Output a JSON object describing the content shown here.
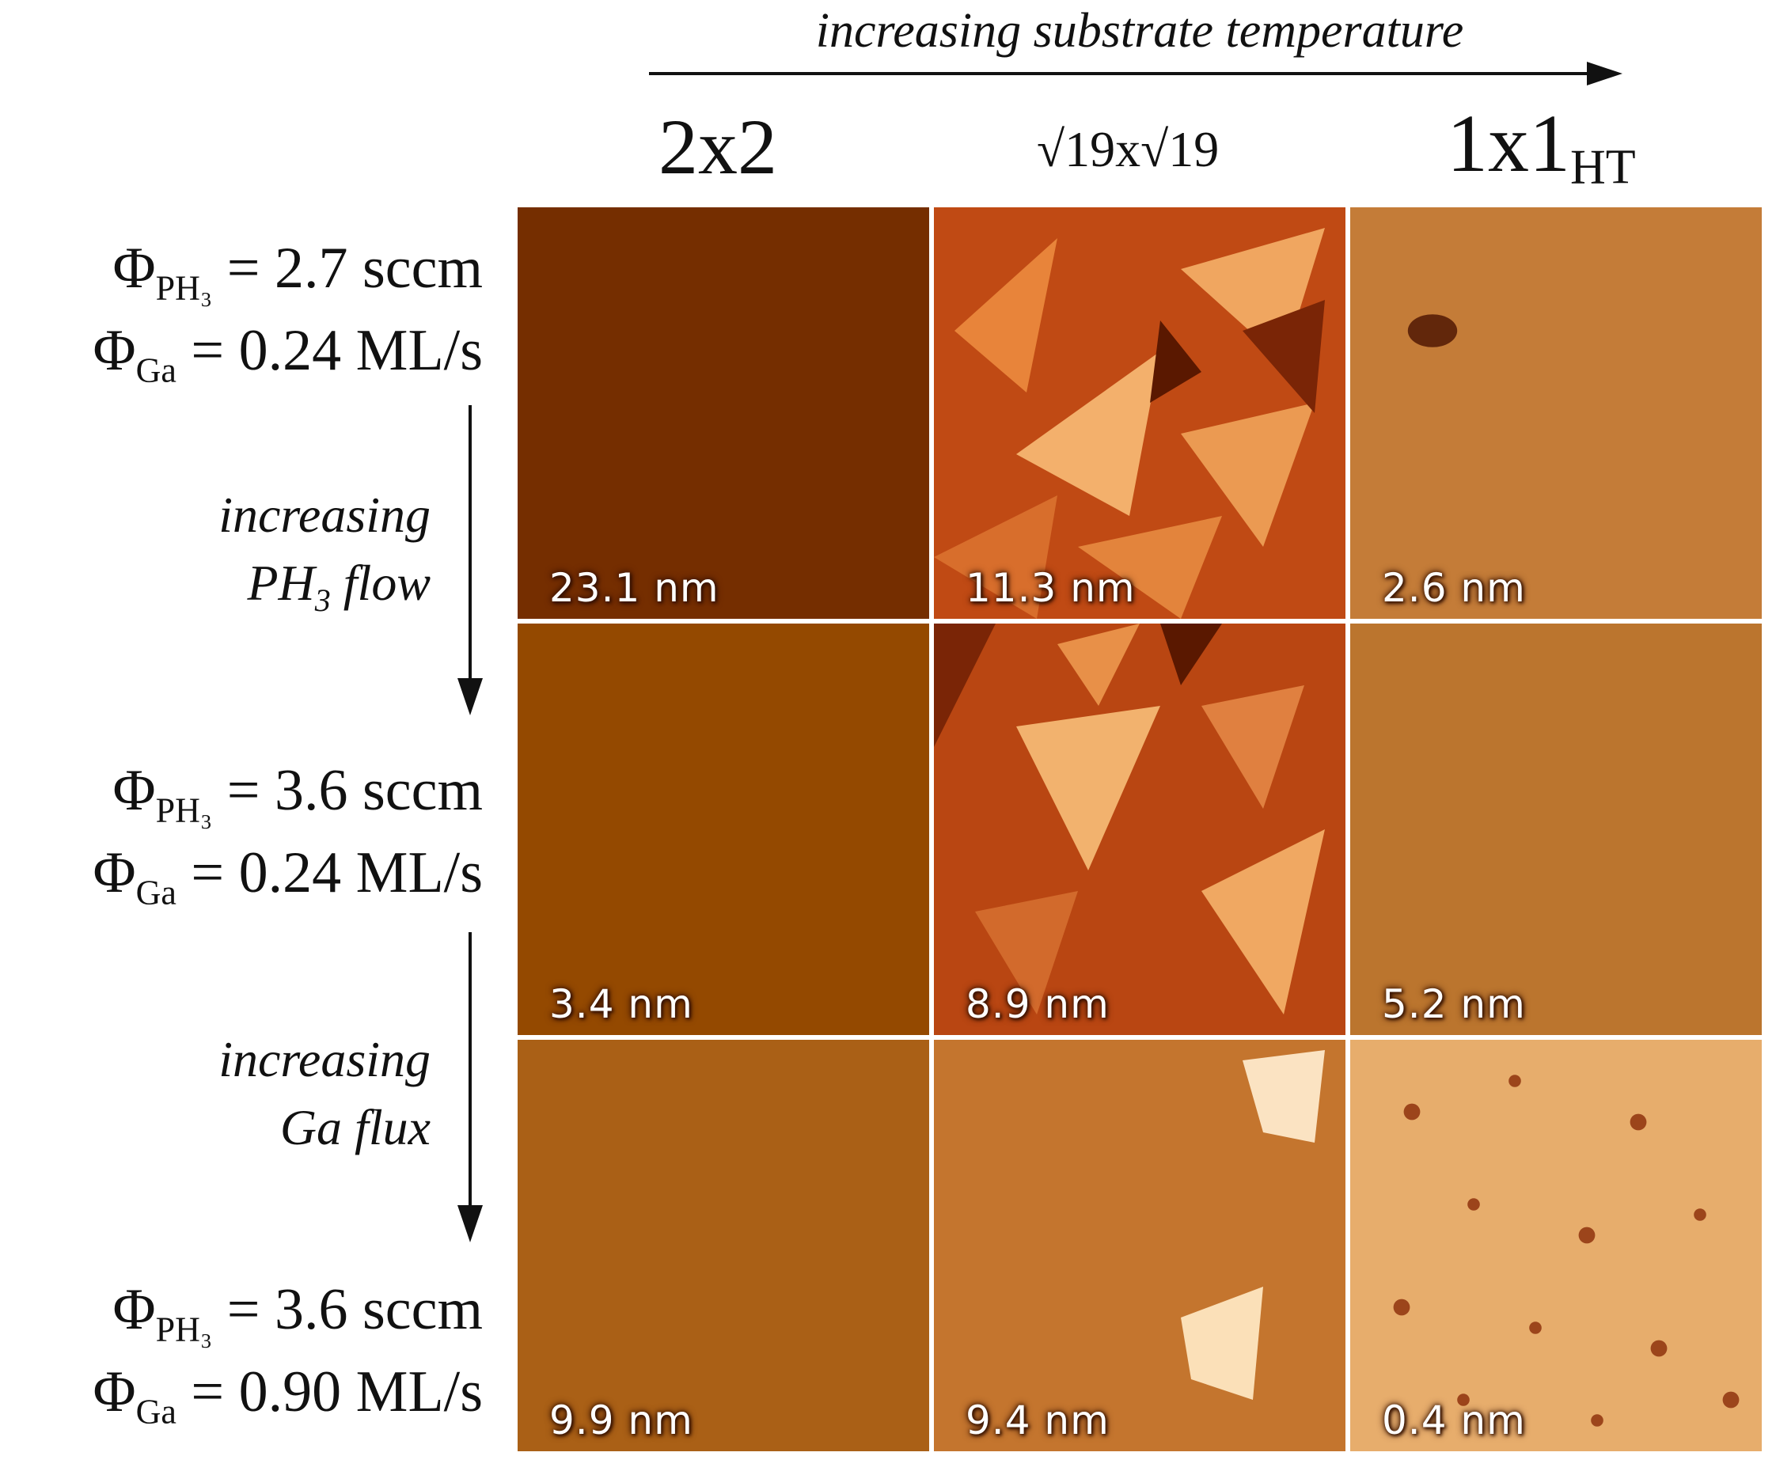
{
  "top_label": "increasing substrate temperature",
  "columns": [
    {
      "main": "2x2",
      "sub": ""
    },
    {
      "main": "√19x√19",
      "sub": ""
    },
    {
      "main": "1x1",
      "sub": "HT"
    }
  ],
  "rows": [
    {
      "ph3": {
        "symbol": "Φ",
        "sub": "PH₃",
        "value": "= 2.7 sccm"
      },
      "ga": {
        "symbol": "Φ",
        "sub": "Ga",
        "value": "= 0.24 ML/s"
      }
    },
    {
      "ph3": {
        "symbol": "Φ",
        "sub": "PH₃",
        "value": "= 3.6 sccm"
      },
      "ga": {
        "symbol": "Φ",
        "sub": "Ga",
        "value": "= 0.24 ML/s"
      }
    },
    {
      "ph3": {
        "symbol": "Φ",
        "sub": "PH₃",
        "value": "= 3.6 sccm"
      },
      "ga": {
        "symbol": "Φ",
        "sub": "Ga",
        "value": "= 0.90 ML/s"
      }
    }
  ],
  "side_labels": [
    {
      "line1": "increasing",
      "line2_pre": "PH",
      "line2_sub": "3",
      "line2_post": " flow"
    },
    {
      "line1": "increasing",
      "line2_pre": "Ga flux",
      "line2_sub": "",
      "line2_post": ""
    }
  ],
  "images": [
    {
      "scale": "23.1 nm",
      "texture": "worm"
    },
    {
      "scale": "11.3 nm",
      "texture": "pyramids"
    },
    {
      "scale": "2.6 nm",
      "texture": "flat-speckle"
    },
    {
      "scale": "3.4 nm",
      "texture": "grains"
    },
    {
      "scale": "8.9 nm",
      "texture": "pyramids"
    },
    {
      "scale": "5.2 nm",
      "texture": "flat-speckle"
    },
    {
      "scale": "9.9 nm",
      "texture": "grains"
    },
    {
      "scale": "9.4 nm",
      "texture": "fractal-islands"
    },
    {
      "scale": "0.4 nm",
      "texture": "pits"
    }
  ],
  "colors": {
    "afm_dark": "#5a1800",
    "afm_mid": "#c8561c",
    "afm_light": "#f6c887"
  }
}
